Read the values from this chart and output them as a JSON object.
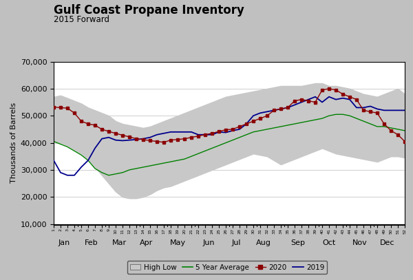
{
  "title": "Gulf Coast Propane Inventory",
  "subtitle": "2015 Forward",
  "ylabel": "Thousands of Barrels",
  "background_color": "#c0c0c0",
  "plot_bg": "#ffffff",
  "ylim": [
    10000,
    70000
  ],
  "yticks": [
    10000,
    20000,
    30000,
    40000,
    50000,
    60000,
    70000
  ],
  "weeks": [
    1,
    2,
    3,
    4,
    5,
    6,
    7,
    8,
    9,
    10,
    11,
    12,
    13,
    14,
    15,
    16,
    17,
    18,
    19,
    20,
    21,
    22,
    23,
    24,
    25,
    26,
    27,
    28,
    29,
    30,
    31,
    32,
    33,
    34,
    35,
    36,
    37,
    38,
    39,
    40,
    41,
    42,
    43,
    44,
    45,
    46,
    47,
    48,
    49,
    50,
    51,
    52
  ],
  "high": [
    57000,
    57500,
    56500,
    55500,
    54500,
    53000,
    52000,
    51000,
    50000,
    48000,
    47000,
    46500,
    46000,
    45500,
    46000,
    47000,
    48000,
    49000,
    50000,
    51000,
    52000,
    53000,
    54000,
    55000,
    56000,
    57000,
    57500,
    58000,
    58500,
    59000,
    59500,
    60000,
    60500,
    61000,
    61000,
    61000,
    61000,
    61500,
    62000,
    62000,
    61000,
    61000,
    60500,
    60000,
    59000,
    58000,
    57500,
    57000,
    58000,
    59000,
    60000,
    58000
  ],
  "low": [
    40500,
    40000,
    39000,
    37500,
    36000,
    34000,
    31000,
    28000,
    25000,
    22000,
    20000,
    19500,
    19500,
    20000,
    21000,
    22500,
    23500,
    24000,
    25000,
    26000,
    27000,
    28000,
    29000,
    30000,
    31000,
    32000,
    33000,
    34000,
    35000,
    36000,
    35500,
    35000,
    33500,
    32000,
    33000,
    34000,
    35000,
    36000,
    37000,
    38000,
    37000,
    36000,
    35500,
    35000,
    34500,
    34000,
    33500,
    33000,
    34000,
    35000,
    35000,
    34500
  ],
  "avg": [
    40500,
    39500,
    38500,
    37000,
    35500,
    33500,
    30500,
    29000,
    28000,
    28500,
    29000,
    30000,
    30500,
    31000,
    31500,
    32000,
    32500,
    33000,
    33500,
    34000,
    35000,
    36000,
    37000,
    38000,
    39000,
    40000,
    41000,
    42000,
    43000,
    44000,
    44500,
    45000,
    45500,
    46000,
    46500,
    47000,
    47500,
    48000,
    48500,
    49000,
    50000,
    50500,
    50500,
    50000,
    49000,
    48000,
    47000,
    46000,
    46000,
    45500,
    45000,
    44500
  ],
  "y2020": [
    53200,
    53000,
    52800,
    51000,
    48000,
    47000,
    46500,
    45000,
    44200,
    43500,
    42800,
    42200,
    41500,
    41200,
    40800,
    40500,
    40200,
    41000,
    41200,
    41500,
    42000,
    42500,
    43000,
    43500,
    44200,
    44800,
    45000,
    46000,
    47000,
    48000,
    49000,
    50000,
    52000,
    52500,
    53000,
    55500,
    56000,
    55500,
    55000,
    59500,
    60000,
    59500,
    58000,
    57000,
    56000,
    52000,
    51500,
    51000,
    47000,
    44500,
    43000,
    40500
  ],
  "y2019": [
    33500,
    29000,
    28000,
    28000,
    31000,
    33500,
    38000,
    41500,
    42000,
    41000,
    40800,
    41000,
    41200,
    41500,
    42000,
    43000,
    43500,
    44000,
    44000,
    44000,
    44000,
    43000,
    43000,
    43000,
    44000,
    43800,
    44500,
    45000,
    47000,
    50000,
    51000,
    51500,
    52000,
    52500,
    53000,
    54000,
    55000,
    56000,
    57000,
    55000,
    57000,
    56000,
    56500,
    56000,
    53000,
    53000,
    53500,
    52500,
    52000,
    52000,
    52000,
    52000
  ],
  "color_high_low": "#c8c8c8",
  "color_avg": "#008000",
  "color_2020": "#8b0000",
  "color_2019": "#00008b",
  "month_labels": [
    "Jan",
    "Feb",
    "Mar",
    "Apr",
    "May",
    "Jun",
    "Jul",
    "Aug",
    "Sep",
    "Oct",
    "Nov",
    "Dec"
  ],
  "month_tick_positions": [
    2.5,
    6.5,
    10.5,
    14.5,
    19.0,
    23.5,
    27.5,
    31.5,
    36.5,
    41.0,
    45.5,
    49.5
  ],
  "month_dividers": [
    4.5,
    8.5,
    13.5,
    17.5,
    21.5,
    26.5,
    30.5,
    34.5,
    39.5,
    43.5,
    47.5
  ]
}
